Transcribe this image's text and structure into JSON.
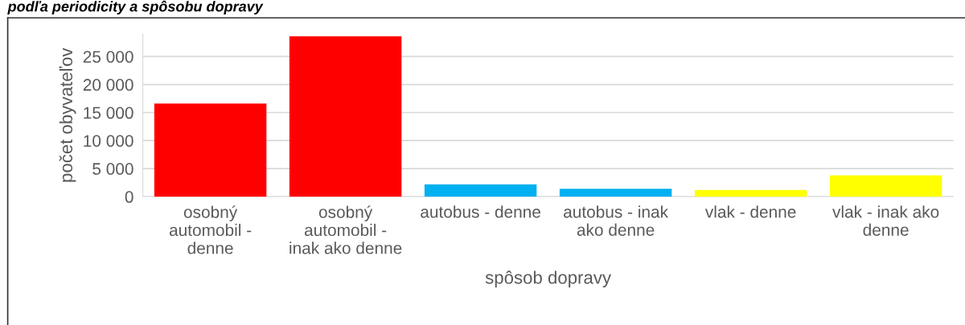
{
  "chart_data": {
    "type": "bar",
    "title": "podľa periodicity a spôsobu dopravy",
    "xlabel": "spôsob dopravy",
    "ylabel": "počet obyvateľov",
    "categories": [
      "osobný automobil - denne",
      "osobný automobil - inak ako denne",
      "autobus - denne",
      "autobus - inak ako denne",
      "vlak - denne",
      "vlak - inak ako denne"
    ],
    "values": [
      16600,
      28600,
      2200,
      1400,
      1200,
      3800
    ],
    "colors": [
      "#ff0000",
      "#ff0000",
      "#00b0f0",
      "#00b0f0",
      "#ffff00",
      "#ffff00"
    ],
    "ylim": [
      0,
      29000
    ],
    "yticks": [
      0,
      {
        "value": 5000,
        "label": "5 000"
      },
      {
        "value": 10000,
        "label": "10 000"
      },
      {
        "value": 15000,
        "label": "15 000"
      },
      {
        "value": 20000,
        "label": "20 000"
      },
      {
        "value": 25000,
        "label": "25 000"
      }
    ],
    "grid": "y",
    "legend": false
  }
}
